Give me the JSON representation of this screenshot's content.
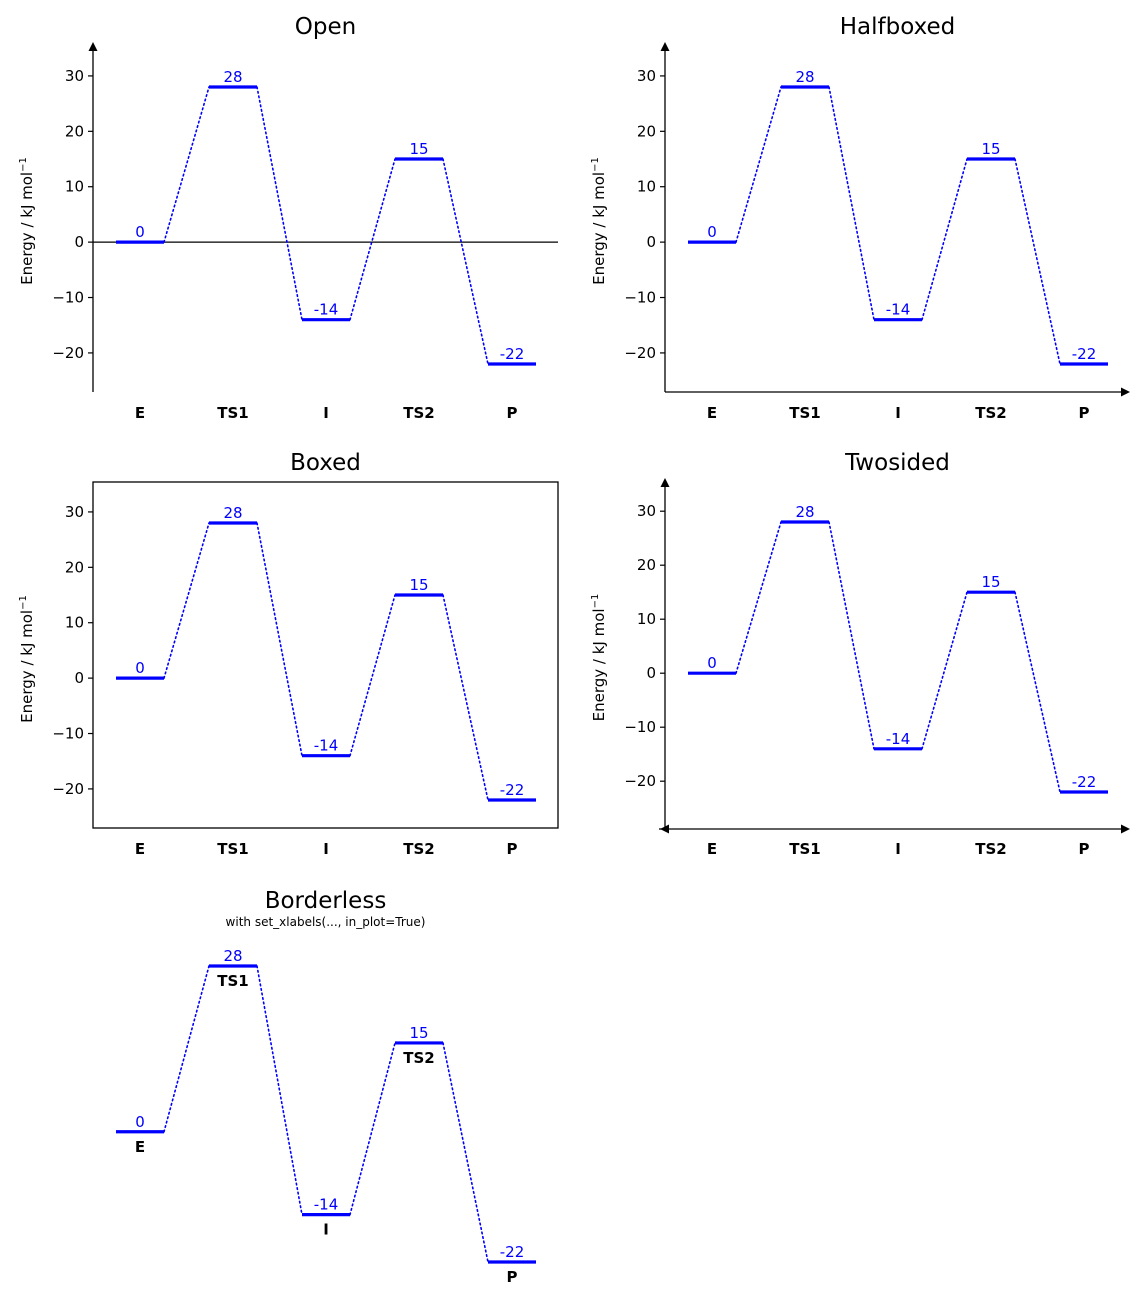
{
  "figure": {
    "y_axis_label": "Energy / kJ mol",
    "y_axis_label_exponent": "−1"
  },
  "chart_data": [
    {
      "type": "energy_diagram",
      "title": "Open",
      "style": "open",
      "categories": [
        "E",
        "TS1",
        "I",
        "TS2",
        "P"
      ],
      "values": [
        0,
        28,
        -14,
        15,
        -22
      ],
      "value_labels": [
        "0",
        "28",
        "-14",
        "15",
        "-22"
      ],
      "ylabel": "Energy / kJ mol⁻¹",
      "ylim": [
        -27,
        35
      ],
      "yticks": [
        -20,
        -10,
        0,
        10,
        20,
        30
      ],
      "ytick_labels": [
        "−20",
        "−10",
        "0",
        "10",
        "20",
        "30"
      ],
      "zero_line": true,
      "line_color": "#0000ff"
    },
    {
      "type": "energy_diagram",
      "title": "Halfboxed",
      "style": "halfboxed",
      "categories": [
        "E",
        "TS1",
        "I",
        "TS2",
        "P"
      ],
      "values": [
        0,
        28,
        -14,
        15,
        -22
      ],
      "value_labels": [
        "0",
        "28",
        "-14",
        "15",
        "-22"
      ],
      "ylabel": "Energy / kJ mol⁻¹",
      "ylim": [
        -27,
        35
      ],
      "yticks": [
        -20,
        -10,
        0,
        10,
        20,
        30
      ],
      "ytick_labels": [
        "−20",
        "−10",
        "0",
        "10",
        "20",
        "30"
      ],
      "zero_line": false,
      "line_color": "#0000ff"
    },
    {
      "type": "energy_diagram",
      "title": "Boxed",
      "style": "boxed",
      "categories": [
        "E",
        "TS1",
        "I",
        "TS2",
        "P"
      ],
      "values": [
        0,
        28,
        -14,
        15,
        -22
      ],
      "value_labels": [
        "0",
        "28",
        "-14",
        "15",
        "-22"
      ],
      "ylabel": "Energy / kJ mol⁻¹",
      "ylim": [
        -27,
        35
      ],
      "yticks": [
        -20,
        -10,
        0,
        10,
        20,
        30
      ],
      "ytick_labels": [
        "−20",
        "−10",
        "0",
        "10",
        "20",
        "30"
      ],
      "zero_line": false,
      "line_color": "#0000ff"
    },
    {
      "type": "energy_diagram",
      "title": "Twosided",
      "style": "twosided",
      "categories": [
        "E",
        "TS1",
        "I",
        "TS2",
        "P"
      ],
      "values": [
        0,
        28,
        -14,
        15,
        -22
      ],
      "value_labels": [
        "0",
        "28",
        "-14",
        "15",
        "-22"
      ],
      "ylabel": "Energy / kJ mol⁻¹",
      "ylim": [
        -28,
        35
      ],
      "yticks": [
        -20,
        -10,
        0,
        10,
        20,
        30
      ],
      "ytick_labels": [
        "−20",
        "−10",
        "0",
        "10",
        "20",
        "30"
      ],
      "zero_line": false,
      "line_color": "#0000ff"
    },
    {
      "type": "energy_diagram",
      "title": "Borderless",
      "subtitle": "with set_xlabels(..., in_plot=True)",
      "style": "borderless",
      "categories": [
        "E",
        "TS1",
        "I",
        "TS2",
        "P"
      ],
      "values": [
        0,
        28,
        -14,
        15,
        -22
      ],
      "value_labels": [
        "0",
        "28",
        "-14",
        "15",
        "-22"
      ],
      "ylim": [
        -27,
        35
      ],
      "labels_in_plot": true,
      "line_color": "#0000ff"
    }
  ]
}
